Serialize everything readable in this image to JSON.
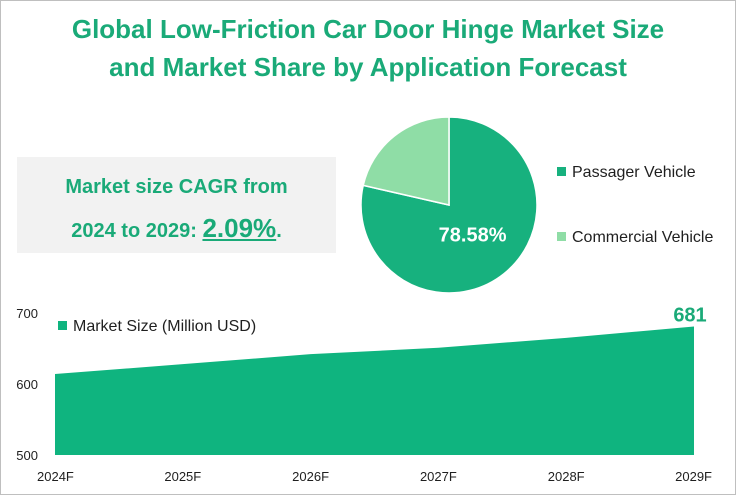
{
  "title_line1": "Global Low-Friction Car Door Hinge Market Size",
  "title_line2": "and Market Share by Application Forecast",
  "cagr": {
    "line1": "Market size CAGR from",
    "line2_prefix": "2024 to 2029: ",
    "value": "2.09%",
    "suffix": "."
  },
  "colors": {
    "accent": "#1aaa78",
    "area": "#0fb47f",
    "pie_primary": "#17b17e",
    "pie_secondary": "#8fdda6",
    "cagr_box": "#f2f2f2"
  },
  "chart_data": [
    {
      "type": "pie",
      "series": [
        {
          "name": "Passager Vehicle",
          "value": 78.58,
          "label": "78.58%",
          "color": "#17b17e"
        },
        {
          "name": "Commercial Vehicle",
          "value": 21.42,
          "color": "#8fdda6"
        }
      ],
      "legend": [
        "Passager Vehicle",
        "Commercial Vehicle"
      ],
      "legend_position": "right"
    },
    {
      "type": "area",
      "legend": "Market Size (Million USD)",
      "legend_position": "top-left",
      "x": [
        "2024F",
        "2025F",
        "2026F",
        "2027F",
        "2028F",
        "2029F"
      ],
      "series": [
        {
          "name": "Market Size (Million USD)",
          "values": [
            614,
            628,
            642,
            651,
            665,
            681
          ]
        }
      ],
      "data_labels": {
        "2029F": "681"
      },
      "yticks": [
        "500",
        "600",
        "700"
      ],
      "ylim": [
        500,
        700
      ],
      "grid": false
    }
  ]
}
